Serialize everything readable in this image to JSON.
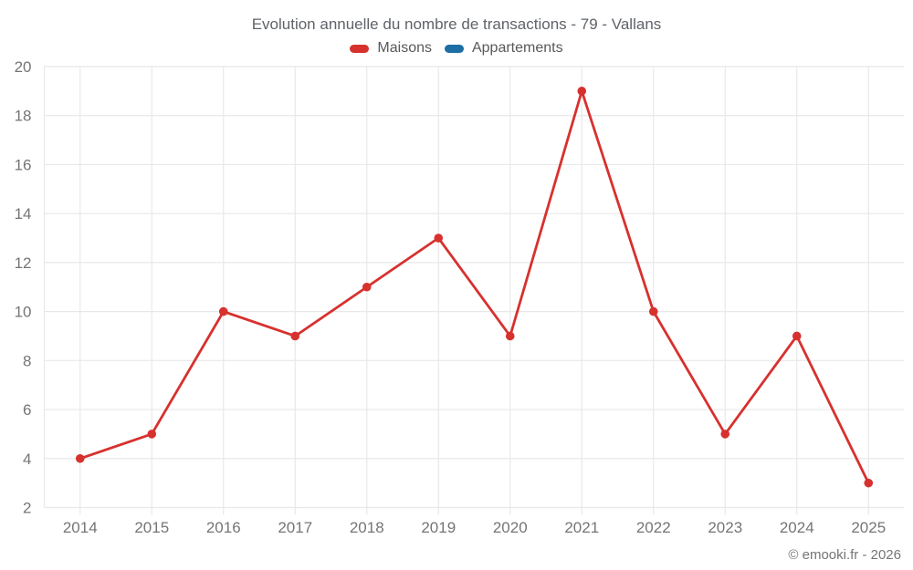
{
  "page": {
    "title": "Evolution annuelle du nombre de transactions - 79 - Vallans",
    "footer": "© emooki.fr - 2026"
  },
  "legend": {
    "items": [
      {
        "label": "Maisons",
        "color": "#d7312e"
      },
      {
        "label": "Appartements",
        "color": "#1c6ea4"
      }
    ]
  },
  "chart_data": {
    "type": "line",
    "title": "Evolution annuelle du nombre de transactions - 79 - Vallans",
    "categories": [
      "2014",
      "2015",
      "2016",
      "2017",
      "2018",
      "2019",
      "2020",
      "2021",
      "2022",
      "2023",
      "2024",
      "2025"
    ],
    "series": [
      {
        "name": "Maisons",
        "color": "#d7312e",
        "values": [
          4,
          5,
          10,
          9,
          11,
          13,
          9,
          19,
          10,
          5,
          9,
          3
        ]
      },
      {
        "name": "Appartements",
        "color": "#1c6ea4",
        "values": []
      }
    ],
    "xlabel": "",
    "ylabel": "",
    "ylim": [
      2,
      20
    ],
    "ytick_step": 2,
    "grid": true,
    "legend_position": "top"
  },
  "style": {
    "background": "#ffffff",
    "grid_color": "#e8e8e8",
    "tick_color": "#757575",
    "title_color": "#5f6368",
    "legend_text_color": "#58595b",
    "footer_color": "#757575"
  }
}
